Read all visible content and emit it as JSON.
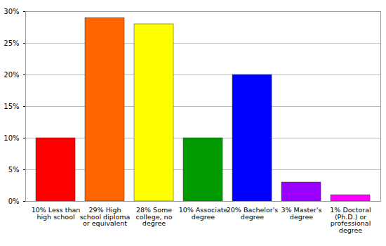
{
  "chart_data": {
    "type": "bar",
    "categories": [
      "10% Less than high school",
      "29% High school diploma or equivalent",
      "28% Some college, no degree",
      "10% Associate degree",
      "20% Bachelor's degree",
      "3% Master's degree",
      "1% Doctoral (Ph.D.) or professional degree"
    ],
    "values": [
      10,
      29,
      28,
      10,
      20,
      3,
      1
    ],
    "colors": [
      "#ff0000",
      "#ff6600",
      "#ffff00",
      "#009900",
      "#0000ff",
      "#9900ff",
      "#ff00ff"
    ],
    "ylim": [
      0,
      30
    ],
    "yticks": [
      {
        "value": 0,
        "label": "0%"
      },
      {
        "value": 5,
        "label": "5%"
      },
      {
        "value": 10,
        "label": "10%"
      },
      {
        "value": 15,
        "label": "15%"
      },
      {
        "value": 20,
        "label": "20%"
      },
      {
        "value": 25,
        "label": "25%"
      },
      {
        "value": 30,
        "label": "30%"
      }
    ],
    "grid": true
  }
}
